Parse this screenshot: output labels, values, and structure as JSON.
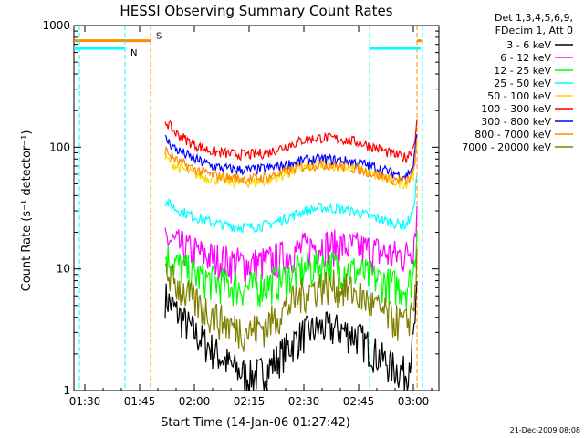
{
  "chart_data": {
    "type": "line",
    "title": "HESSI Observing Summary Count Rates",
    "xlabel": "Start Time (14-Jan-06 01:27:42)",
    "ylabel": "Count Rate (s⁻¹ detector⁻¹)",
    "yscale": "log",
    "ylim": [
      1,
      1000
    ],
    "xlim_minutes": [
      -3,
      97
    ],
    "x_unit": "minutes after 01:30",
    "x_ticks": [
      {
        "label": "01:30",
        "value": 0
      },
      {
        "label": "01:45",
        "value": 15
      },
      {
        "label": "02:00",
        "value": 30
      },
      {
        "label": "02:15",
        "value": 45
      },
      {
        "label": "02:30",
        "value": 60
      },
      {
        "label": "02:45",
        "value": 75
      },
      {
        "label": "03:00",
        "value": 90
      }
    ],
    "y_ticks": [
      {
        "label": "1",
        "value": 1
      },
      {
        "label": "10",
        "value": 10
      },
      {
        "label": "100",
        "value": 100
      },
      {
        "label": "1000",
        "value": 1000
      }
    ],
    "legend_header": [
      "Det 1,3,4,5,6,9,",
      "FDecim 1, Att 0"
    ],
    "legend_position": "top-right, outside plot",
    "grid": false,
    "series": [
      {
        "name": "3 - 6 keV",
        "color": "#000000",
        "x": [
          22,
          25,
          30,
          35,
          40,
          45,
          50,
          55,
          60,
          65,
          70,
          75,
          80,
          84,
          88,
          90,
          91
        ],
        "y": [
          6,
          4.5,
          3,
          2.2,
          1.6,
          1.3,
          1.5,
          2.2,
          3,
          3.3,
          3.2,
          2.8,
          2,
          1.6,
          1.4,
          2.5,
          6
        ]
      },
      {
        "name": "6 - 12 keV",
        "color": "#ff00ff",
        "x": [
          22,
          25,
          30,
          35,
          40,
          45,
          50,
          55,
          60,
          65,
          70,
          75,
          80,
          84,
          88,
          90,
          91
        ],
        "y": [
          18,
          16,
          14,
          12.5,
          11.5,
          11,
          11.5,
          13,
          15,
          16,
          15.5,
          15,
          14,
          13,
          13,
          16,
          30
        ]
      },
      {
        "name": "12 - 25 keV",
        "color": "#00ff00",
        "x": [
          22,
          25,
          30,
          35,
          40,
          45,
          50,
          55,
          60,
          65,
          70,
          75,
          80,
          84,
          88,
          90,
          91
        ],
        "y": [
          13,
          11,
          9,
          8,
          7.3,
          7,
          7.5,
          8.5,
          10,
          10.8,
          10.5,
          9.5,
          8.3,
          7.5,
          7,
          9,
          22
        ]
      },
      {
        "name": "25 - 50 keV",
        "color": "#00ffff",
        "x": [
          22,
          25,
          30,
          35,
          40,
          45,
          50,
          55,
          60,
          65,
          70,
          75,
          80,
          84,
          88,
          90,
          91
        ],
        "y": [
          36,
          31,
          27,
          24,
          22.5,
          22,
          23,
          26,
          30,
          32,
          31,
          29,
          26,
          24,
          23,
          30,
          60
        ]
      },
      {
        "name": "50 - 100 keV",
        "color": "#ffd700",
        "x": [
          22,
          25,
          30,
          35,
          40,
          45,
          50,
          55,
          60,
          65,
          70,
          75,
          80,
          84,
          88,
          90,
          91
        ],
        "y": [
          82,
          70,
          60,
          55,
          52,
          51,
          53,
          60,
          68,
          72,
          70,
          66,
          58,
          53,
          50,
          60,
          100
        ]
      },
      {
        "name": "100 - 300 keV",
        "color": "#ff0000",
        "x": [
          22,
          25,
          30,
          35,
          40,
          45,
          50,
          55,
          60,
          65,
          70,
          75,
          80,
          84,
          88,
          90,
          91
        ],
        "y": [
          165,
          130,
          105,
          92,
          88,
          87,
          90,
          102,
          115,
          120,
          117,
          110,
          98,
          88,
          82,
          100,
          160
        ]
      },
      {
        "name": "300 - 800 keV",
        "color": "#0000ff",
        "x": [
          22,
          25,
          30,
          35,
          40,
          45,
          50,
          55,
          60,
          65,
          70,
          75,
          80,
          84,
          88,
          90,
          91
        ],
        "y": [
          118,
          96,
          80,
          70,
          66,
          65,
          67,
          72,
          78,
          80,
          78,
          75,
          68,
          62,
          58,
          70,
          130
        ]
      },
      {
        "name": "800 - 7000 keV",
        "color": "#ff8c00",
        "x": [
          22,
          25,
          30,
          35,
          40,
          45,
          50,
          55,
          60,
          65,
          70,
          75,
          80,
          84,
          88,
          90,
          91
        ],
        "y": [
          95,
          78,
          66,
          59,
          56,
          55,
          57,
          63,
          70,
          72,
          70,
          66,
          60,
          55,
          52,
          60,
          110
        ]
      },
      {
        "name": "7000 - 20000 keV",
        "color": "#808000",
        "x": [
          22,
          25,
          30,
          35,
          40,
          45,
          50,
          55,
          60,
          65,
          70,
          75,
          80,
          84,
          88,
          90,
          91
        ],
        "y": [
          10,
          7.5,
          5.5,
          4.2,
          3.4,
          3.1,
          3.5,
          4.8,
          6.5,
          7.5,
          7.2,
          6.2,
          4.8,
          4,
          3.5,
          5,
          11
        ]
      }
    ],
    "attenuator_flag": {
      "label": "S",
      "color": "#ff8c00",
      "level": 750,
      "segments": [
        [
          -3,
          18
        ],
        [
          91,
          92.5
        ]
      ],
      "boundaries": [
        18,
        91,
        92.5
      ]
    },
    "night_flag": {
      "label": "N",
      "color": "#00ffff",
      "level": 650,
      "segments": [
        [
          -3,
          11
        ],
        [
          78,
          92
        ]
      ],
      "boundaries": [
        -1.5,
        11,
        78,
        92.5
      ]
    }
  },
  "timestamp": "21-Dec-2009 08:08"
}
